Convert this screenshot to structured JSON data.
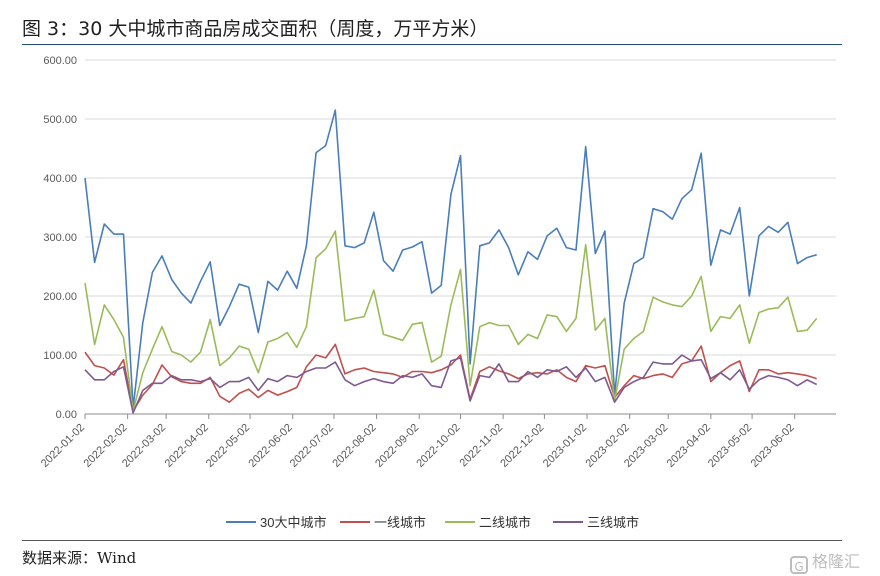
{
  "header": {
    "title": "图 3：30 大中城市商品房成交面积（周度，万平方米）"
  },
  "footer": {
    "source": "数据来源：Wind",
    "watermark": "格隆汇"
  },
  "colors": {
    "s30": "#4a7ebb",
    "s1": "#c0504d",
    "s2": "#9bbb59",
    "s3": "#7e5a8f",
    "grid": "#d9d9d9",
    "axis": "#8c8c8c",
    "text": "#595959"
  },
  "chart_data": {
    "type": "line",
    "title": "",
    "ylim": [
      0,
      600
    ],
    "yticks": [
      "0.00",
      "100.00",
      "200.00",
      "300.00",
      "400.00",
      "500.00",
      "600.00"
    ],
    "x_tick_labels": [
      "2022-01-02",
      "2022-02-02",
      "2022-03-02",
      "2022-04-02",
      "2022-05-02",
      "2022-06-02",
      "2022-07-02",
      "2022-08-02",
      "2022-09-02",
      "2022-10-02",
      "2022-11-02",
      "2022-12-02",
      "2023-01-02",
      "2023-02-02",
      "2023-03-02",
      "2023-04-02",
      "2023-05-02",
      "2023-06-02"
    ],
    "x_start": "2022-01-02",
    "x_interval_days": 7,
    "x_end": "2023-07-02",
    "grid": "horizontal",
    "legend_position": "bottom",
    "series": [
      {
        "name": "30大中城市",
        "color": "#4a7ebb",
        "values": [
          400,
          257,
          322,
          305,
          305,
          10,
          155,
          240,
          268,
          228,
          205,
          188,
          225,
          258,
          150,
          182,
          220,
          215,
          138,
          225,
          210,
          242,
          213,
          285,
          443,
          455,
          515,
          285,
          282,
          290,
          342,
          260,
          242,
          278,
          283,
          292,
          205,
          218,
          372,
          438,
          85,
          285,
          290,
          312,
          282,
          236,
          275,
          262,
          302,
          315,
          282,
          278,
          453,
          272,
          310,
          33,
          188,
          255,
          265,
          348,
          343,
          330,
          365,
          380,
          442,
          252,
          312,
          305,
          350,
          200,
          302,
          318,
          308,
          325,
          255,
          265,
          270
        ]
      },
      {
        "name": "一线城市",
        "color": "#c0504d",
        "values": [
          105,
          82,
          78,
          66,
          92,
          5,
          32,
          50,
          83,
          63,
          55,
          52,
          52,
          62,
          30,
          20,
          35,
          42,
          28,
          40,
          32,
          38,
          45,
          80,
          100,
          95,
          118,
          68,
          75,
          78,
          72,
          70,
          68,
          62,
          72,
          72,
          70,
          75,
          83,
          100,
          25,
          72,
          80,
          73,
          68,
          60,
          68,
          70,
          68,
          75,
          62,
          55,
          82,
          78,
          82,
          28,
          48,
          65,
          60,
          65,
          68,
          62,
          85,
          90,
          115,
          55,
          70,
          82,
          90,
          38,
          75,
          75,
          68,
          70,
          68,
          65,
          60
        ]
      },
      {
        "name": "二线城市",
        "color": "#9bbb59",
        "values": [
          222,
          118,
          185,
          160,
          130,
          5,
          70,
          110,
          148,
          106,
          100,
          88,
          105,
          160,
          82,
          95,
          115,
          110,
          70,
          122,
          128,
          138,
          113,
          148,
          265,
          280,
          310,
          158,
          162,
          165,
          210,
          135,
          130,
          125,
          152,
          155,
          88,
          98,
          185,
          245,
          48,
          148,
          155,
          150,
          150,
          118,
          135,
          128,
          168,
          165,
          140,
          162,
          287,
          142,
          162,
          22,
          110,
          128,
          140,
          198,
          190,
          185,
          182,
          200,
          233,
          140,
          165,
          162,
          185,
          120,
          172,
          178,
          180,
          198,
          140,
          142,
          162
        ]
      },
      {
        "name": "三线城市",
        "color": "#7e5a8f",
        "values": [
          75,
          58,
          58,
          72,
          80,
          2,
          40,
          52,
          52,
          65,
          58,
          58,
          55,
          60,
          45,
          55,
          55,
          62,
          40,
          60,
          55,
          65,
          62,
          72,
          78,
          78,
          88,
          58,
          48,
          55,
          60,
          55,
          52,
          65,
          62,
          68,
          48,
          45,
          90,
          95,
          22,
          65,
          62,
          85,
          55,
          55,
          72,
          62,
          75,
          72,
          80,
          62,
          78,
          55,
          62,
          20,
          45,
          55,
          62,
          88,
          85,
          85,
          100,
          90,
          92,
          60,
          70,
          58,
          75,
          42,
          58,
          65,
          62,
          58,
          48,
          58,
          50
        ]
      }
    ]
  }
}
